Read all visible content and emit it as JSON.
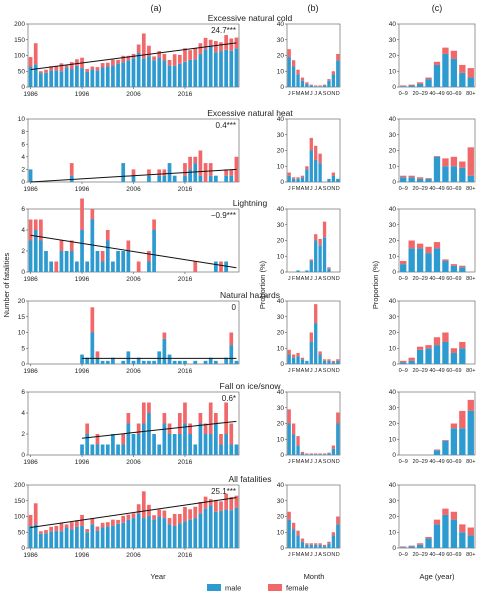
{
  "figure": {
    "panel_labels": [
      "(a)",
      "(b)",
      "(c)"
    ],
    "x_titles": [
      "Year",
      "Month",
      "Age (year)"
    ],
    "y_titles": [
      "Number of fatalities",
      "Proportion (%)",
      "Proportion (%)"
    ],
    "legend": [
      {
        "label": "male",
        "color": "#2e9bd0"
      },
      {
        "label": "female",
        "color": "#f0686a"
      }
    ]
  },
  "chart_data": [
    {
      "type": "bar",
      "title": "Excessive natural cold",
      "trend_label": "24.7***",
      "years": {
        "tick_labels": [
          "1986",
          "1996",
          "2006",
          "2016"
        ],
        "ylim": [
          0,
          200
        ],
        "yticks": [
          0,
          50,
          100,
          150,
          200
        ],
        "trend": [
          55,
          140
        ],
        "male": [
          65,
          72,
          44,
          45,
          52,
          53,
          50,
          62,
          57,
          67,
          60,
          48,
          56,
          52,
          62,
          65,
          68,
          75,
          78,
          85,
          91,
          108,
          90,
          98,
          85,
          94,
          84,
          68,
          67,
          74,
          80,
          86,
          88,
          105,
          120,
          132,
          110,
          114,
          118,
          115,
          123
        ],
        "female": [
          30,
          67,
          6,
          10,
          14,
          14,
          25,
          9,
          22,
          21,
          33,
          9,
          9,
          11,
          14,
          12,
          19,
          11,
          21,
          14,
          14,
          27,
          80,
          33,
          12,
          20,
          21,
          18,
          37,
          28,
          43,
          31,
          35,
          34,
          36,
          18,
          36,
          28,
          47,
          39,
          34
        ]
      },
      "months": {
        "ymax": 40,
        "yticks": [
          0,
          10,
          20,
          30,
          40
        ],
        "male": [
          19,
          13,
          8,
          4,
          2,
          1,
          0.5,
          0.5,
          1,
          4,
          8,
          17
        ],
        "female": [
          5,
          4,
          3,
          2,
          1,
          0.5,
          0.5,
          0.5,
          0.5,
          1,
          2,
          4
        ]
      },
      "ages": {
        "ymax": 40,
        "yticks": [
          0,
          10,
          20,
          30,
          40
        ],
        "male": [
          0.5,
          1,
          2,
          5,
          14,
          21,
          18,
          9,
          6
        ],
        "female": [
          0.5,
          0.5,
          1,
          1,
          2,
          4,
          5,
          5,
          6
        ]
      }
    },
    {
      "type": "bar",
      "title": "Excessive natural heat",
      "trend_label": "0.4***",
      "years": {
        "tick_labels": [
          "1986",
          "1996",
          "2006",
          "2016"
        ],
        "ylim": [
          0,
          10
        ],
        "yticks": [
          0,
          2,
          4,
          6,
          8,
          10
        ],
        "trend": [
          0,
          2.0
        ],
        "male": [
          2,
          0,
          0,
          0,
          0,
          0,
          0,
          0,
          1,
          0,
          0,
          0,
          0,
          0,
          0,
          0,
          0,
          0,
          3,
          0,
          1,
          0,
          0,
          1,
          0,
          1,
          1,
          3,
          1,
          0,
          1,
          2,
          3,
          1,
          0,
          1,
          1,
          0,
          1,
          1,
          0
        ],
        "female": [
          0,
          0,
          0,
          0,
          0,
          0,
          0,
          0,
          2,
          0,
          0,
          0,
          0,
          0,
          0,
          0,
          0,
          0,
          0,
          0,
          1,
          0,
          0,
          1,
          0,
          1,
          1,
          0,
          0,
          0,
          2,
          2,
          1,
          4,
          3,
          2,
          0,
          0,
          1,
          1,
          4
        ]
      },
      "months": {
        "ymax": 40,
        "yticks": [
          0,
          10,
          20,
          30,
          40
        ],
        "male": [
          4,
          2,
          2,
          3,
          8,
          20,
          14,
          12,
          0,
          2,
          4,
          2
        ],
        "female": [
          2,
          1,
          1,
          1,
          2,
          8,
          9,
          6,
          0,
          0,
          2,
          0
        ]
      },
      "ages": {
        "ymax": 40,
        "yticks": [
          0,
          10,
          20,
          30,
          40
        ],
        "male": [
          3,
          3,
          2,
          2,
          16,
          10,
          10,
          9,
          4
        ],
        "female": [
          1,
          1,
          1,
          0.5,
          0.5,
          5,
          6,
          4,
          18
        ]
      }
    },
    {
      "type": "bar",
      "title": "Lightning",
      "trend_label": "−0.9***",
      "years": {
        "tick_labels": [
          "1986",
          "1996",
          "2006",
          "2016"
        ],
        "ylim": [
          0,
          6
        ],
        "yticks": [
          0,
          2,
          4,
          6
        ],
        "trend": [
          3.5,
          0.4
        ],
        "male": [
          3,
          4,
          3,
          2,
          1,
          0,
          2,
          2,
          2,
          1,
          4,
          1,
          5,
          2,
          1,
          3,
          1,
          2,
          2,
          2,
          0,
          0,
          0,
          1,
          4,
          0,
          0,
          0,
          0,
          0,
          0,
          0,
          0,
          0,
          0,
          0,
          1,
          0,
          1,
          0,
          0
        ],
        "female": [
          2,
          1,
          2,
          0,
          0,
          1,
          1,
          0,
          1,
          0,
          3,
          0,
          1,
          0,
          1,
          1,
          0,
          0,
          0,
          1,
          0,
          1,
          0,
          1,
          1,
          0,
          0,
          0,
          0,
          0,
          0,
          0,
          1,
          0,
          0,
          0,
          0,
          1,
          0,
          0,
          0
        ]
      },
      "months": {
        "ymax": 40,
        "yticks": [
          0,
          10,
          20,
          30,
          40
        ],
        "male": [
          0,
          0,
          1,
          0,
          1,
          7,
          20,
          17,
          22,
          2,
          0,
          0
        ],
        "female": [
          0,
          0,
          0,
          0,
          0,
          1,
          4,
          4,
          10,
          1,
          0,
          0
        ]
      },
      "ages": {
        "ymax": 40,
        "yticks": [
          0,
          10,
          20,
          30,
          40
        ],
        "male": [
          5,
          15,
          15,
          12,
          15,
          7,
          4,
          3,
          0
        ],
        "female": [
          2,
          5,
          3,
          4,
          4,
          1,
          1,
          1,
          0
        ]
      }
    },
    {
      "type": "bar",
      "title": "Natural hazards",
      "trend_label": "0",
      "years": {
        "tick_labels": [
          "1986",
          "1996",
          "2006",
          "2016"
        ],
        "ylim": [
          0,
          20
        ],
        "yticks": [
          0,
          5,
          10,
          15,
          20
        ],
        "trend": [
          1.8,
          1.8
        ],
        "male": [
          0,
          0,
          0,
          0,
          0,
          0,
          0,
          0,
          0,
          0,
          3,
          2,
          10,
          2,
          1,
          1,
          2,
          0,
          1,
          4,
          1,
          2,
          1,
          1,
          1,
          4,
          8,
          3,
          1,
          1,
          1,
          0,
          1,
          0,
          1,
          2,
          1,
          0,
          2,
          6,
          1
        ],
        "female": [
          0,
          0,
          0,
          0,
          0,
          0,
          0,
          0,
          0,
          0,
          0,
          0,
          8,
          2,
          0,
          0,
          0,
          0,
          0,
          0,
          0,
          0,
          0,
          0,
          0,
          0,
          2,
          0,
          0,
          0,
          0,
          0,
          0,
          0,
          0,
          0,
          0,
          0,
          0,
          4,
          0
        ]
      },
      "months": {
        "ymax": 40,
        "yticks": [
          0,
          10,
          20,
          30,
          40
        ],
        "male": [
          6,
          4,
          5,
          3,
          2,
          14,
          26,
          6,
          2,
          2,
          1,
          2
        ],
        "female": [
          3,
          2,
          2,
          1,
          0,
          6,
          12,
          2,
          1,
          1,
          1,
          1
        ]
      },
      "ages": {
        "ymax": 40,
        "yticks": [
          0,
          10,
          20,
          30,
          40
        ],
        "male": [
          1,
          2,
          9,
          10,
          12,
          14,
          7,
          10,
          0
        ],
        "female": [
          1,
          2,
          2,
          2,
          5,
          6,
          3,
          4,
          0
        ]
      }
    },
    {
      "type": "bar",
      "title": "Fall on ice/snow",
      "trend_label": "0.6*",
      "years": {
        "tick_labels": [
          "1986",
          "1996",
          "2006",
          "2016"
        ],
        "ylim": [
          0,
          6
        ],
        "yticks": [
          0,
          2,
          4,
          6
        ],
        "trend": [
          1.6,
          3.2
        ],
        "male": [
          0,
          0,
          0,
          0,
          0,
          0,
          0,
          0,
          0,
          0,
          1,
          2,
          1,
          1,
          1,
          1,
          2,
          1,
          1,
          3,
          2,
          2,
          3,
          4,
          2,
          1,
          3,
          2,
          2,
          2,
          3,
          2,
          1,
          3,
          2,
          2,
          3,
          1,
          2,
          1,
          1
        ],
        "female": [
          0,
          0,
          0,
          0,
          0,
          0,
          0,
          0,
          0,
          0,
          0,
          1,
          0,
          1,
          0,
          0,
          0,
          0,
          1,
          1,
          0,
          1,
          2,
          1,
          0,
          0,
          1,
          1,
          0,
          2,
          2,
          1,
          0,
          1,
          1,
          3,
          1,
          1,
          3,
          2,
          0
        ]
      },
      "months": {
        "ymax": 40,
        "yticks": [
          0,
          10,
          20,
          30,
          40
        ],
        "male": [
          20,
          13,
          6,
          1,
          0.5,
          0.5,
          0.5,
          0.5,
          0.5,
          1,
          4,
          20
        ],
        "female": [
          9,
          7,
          6,
          1,
          0.5,
          0.5,
          0.5,
          0.5,
          0.5,
          0.5,
          2,
          7
        ]
      },
      "ages": {
        "ymax": 40,
        "yticks": [
          0,
          10,
          20,
          30,
          40
        ],
        "male": [
          0,
          0,
          0,
          0,
          3,
          9,
          17,
          17,
          28
        ],
        "female": [
          0,
          0,
          0,
          0,
          0.5,
          0.5,
          3,
          11,
          7
        ]
      }
    },
    {
      "type": "bar",
      "title": "All fatalities",
      "trend_label": "25.1***",
      "years": {
        "tick_labels": [
          "1986",
          "1996",
          "2006",
          "2016"
        ],
        "ylim": [
          0,
          200
        ],
        "yticks": [
          0,
          50,
          100,
          150,
          200
        ],
        "trend": [
          65,
          160
        ],
        "male": [
          70,
          75,
          45,
          47,
          52,
          55,
          53,
          65,
          59,
          67,
          70,
          50,
          75,
          55,
          65,
          68,
          70,
          77,
          80,
          90,
          95,
          110,
          95,
          102,
          90,
          100,
          95,
          75,
          70,
          78,
          85,
          90,
          95,
          110,
          125,
          135,
          115,
          118,
          122,
          120,
          128
        ],
        "female": [
          35,
          67,
          8,
          10,
          15,
          15,
          25,
          10,
          23,
          21,
          35,
          10,
          20,
          13,
          15,
          14,
          20,
          12,
          22,
          16,
          15,
          29,
          85,
          35,
          14,
          22,
          24,
          20,
          38,
          30,
          45,
          33,
          36,
          36,
          38,
          20,
          38,
          30,
          50,
          42,
          38
        ]
      },
      "months": {
        "ymax": 40,
        "yticks": [
          0,
          10,
          20,
          30,
          40
        ],
        "male": [
          18,
          12,
          8,
          4,
          2,
          2,
          2,
          2,
          1,
          3,
          8,
          15
        ],
        "female": [
          5,
          4,
          3,
          2,
          1,
          1,
          1,
          1,
          1,
          1,
          2,
          5
        ]
      },
      "ages": {
        "ymax": 40,
        "yticks": [
          0,
          10,
          20,
          30,
          40
        ],
        "male": [
          0.5,
          1,
          2,
          6,
          15,
          21,
          18,
          10,
          8
        ],
        "female": [
          0.5,
          0.5,
          1,
          1,
          3,
          4,
          5,
          5,
          5
        ]
      }
    }
  ],
  "month_labels": [
    "J",
    "F",
    "M",
    "A",
    "M",
    "J",
    "J",
    "A",
    "S",
    "O",
    "N",
    "D"
  ],
  "age_labels": [
    "0–9",
    "20–29",
    "40–49",
    "60–69",
    "80+"
  ]
}
